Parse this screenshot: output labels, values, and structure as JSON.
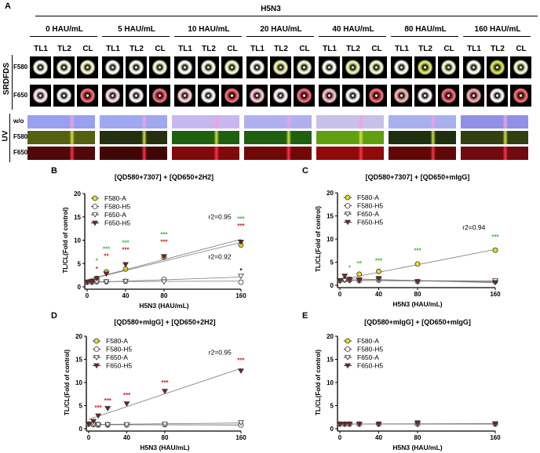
{
  "panelA": {
    "label": "A",
    "virus": "H5N3",
    "concentrations": [
      "0 HAU/mL",
      "5 HAU/mL",
      "10 HAU/mL",
      "20 HAU/mL",
      "40 HAU/mL",
      "80 HAU/mL",
      "160 HAU/mL"
    ],
    "lanes": [
      "TL1",
      "TL2",
      "CL"
    ],
    "srdfds_label": "SRDFDS",
    "uv_label": "UV",
    "srdfds_rows": [
      "F580",
      "F650"
    ],
    "uv_rows": [
      "w/o",
      "F580",
      "F650"
    ]
  },
  "chart_data": [
    {
      "panel": "B",
      "type": "line",
      "title": "[QD580+7307] + [QD650+2H2]",
      "xlabel": "H5N3 (HAU/mL)",
      "ylabel": "TL/CL(Fold of control)",
      "xlim": [
        0,
        160
      ],
      "ylim": [
        0,
        20
      ],
      "xticks": [
        "0",
        "40",
        "80",
        "160"
      ],
      "yticks": [
        "0",
        "5",
        "10",
        "15",
        "20"
      ],
      "legend": "top-left",
      "x": [
        0,
        5,
        10,
        20,
        40,
        80,
        160
      ],
      "series": [
        {
          "name": "F580-A",
          "values": [
            1,
            1.2,
            1.8,
            3.2,
            3.8,
            6.3,
            9.0
          ],
          "color": "#e8e020",
          "marker": "circle-filled"
        },
        {
          "name": "F580-H5",
          "values": [
            1,
            1.0,
            1.1,
            1.1,
            1.2,
            1.6,
            1.0
          ],
          "color": "#ffffff",
          "marker": "circle-open"
        },
        {
          "name": "F650-A",
          "values": [
            1,
            1.0,
            1.1,
            1.1,
            1.2,
            1.1,
            2.3
          ],
          "color": "#ffffff",
          "marker": "triangle-open"
        },
        {
          "name": "F650-H5",
          "values": [
            1,
            1.2,
            1.8,
            2.8,
            4.8,
            6.5,
            9.6
          ],
          "color": "#8b1a1a",
          "marker": "triangle-filled"
        }
      ],
      "annotations": [
        {
          "text": "r2=0.95",
          "x": 138,
          "y": 14.5
        },
        {
          "text": "r2=0.92",
          "x": 138,
          "y": 6
        }
      ],
      "significance": [
        {
          "x": 10,
          "y": 3.4,
          "text": "*",
          "color": "#d42020"
        },
        {
          "x": 10,
          "y": 2.6,
          "text": "*",
          "color": "#30c040"
        },
        {
          "x": 20,
          "y": 6.1,
          "text": "**",
          "color": "#d42020"
        },
        {
          "x": 20,
          "y": 5.1,
          "text": "***",
          "color": "#30c040"
        },
        {
          "x": 40,
          "y": 7.5,
          "text": "***",
          "color": "#d42020"
        },
        {
          "x": 40,
          "y": 6.5,
          "text": "***",
          "color": "#30c040"
        },
        {
          "x": 80,
          "y": 9.2,
          "text": "***",
          "color": "#d42020"
        },
        {
          "x": 80,
          "y": 8.2,
          "text": "***",
          "color": "#30c040"
        },
        {
          "x": 160,
          "y": 12.6,
          "text": "***",
          "color": "#d42020"
        },
        {
          "x": 160,
          "y": 11.6,
          "text": "***",
          "color": "#30c040"
        },
        {
          "x": 160,
          "y": 3.0,
          "text": "*",
          "color": "#000000"
        }
      ]
    },
    {
      "panel": "C",
      "type": "line",
      "title": "[QD580+7307] + [QD650+mIgG]",
      "xlabel": "H5N3 (HAU/mL)",
      "ylabel": "TL/CL(Fold of control)",
      "xlim": [
        0,
        160
      ],
      "ylim": [
        0,
        20
      ],
      "xticks": [
        "0",
        "40",
        "80",
        "160"
      ],
      "yticks": [
        "0",
        "5",
        "10",
        "15",
        "20"
      ],
      "legend": "top-left",
      "x": [
        0,
        5,
        10,
        20,
        40,
        80,
        160
      ],
      "series": [
        {
          "name": "F580-A",
          "values": [
            1,
            1.2,
            1.3,
            2.4,
            3.0,
            4.6,
            7.6
          ],
          "color": "#e8e020",
          "marker": "circle-filled"
        },
        {
          "name": "F580-H5",
          "values": [
            1,
            1.2,
            1.1,
            1.0,
            1.1,
            0.8,
            0.8
          ],
          "color": "#ffffff",
          "marker": "circle-open"
        },
        {
          "name": "F650-A",
          "values": [
            1,
            1.1,
            1.0,
            1.0,
            1.2,
            0.8,
            1.0
          ],
          "color": "#ffffff",
          "marker": "triangle-open"
        },
        {
          "name": "F650-H5",
          "values": [
            1,
            2.0,
            1.3,
            1.2,
            1.5,
            0.8,
            0.6
          ],
          "color": "#8b1a1a",
          "marker": "triangle-filled"
        }
      ],
      "annotations": [
        {
          "text": "r2=0.94",
          "x": 138,
          "y": 12
        }
      ],
      "significance": [
        {
          "x": 10,
          "y": 3.3,
          "text": "*",
          "color": "#30c040"
        },
        {
          "x": 20,
          "y": 4.2,
          "text": "**",
          "color": "#30c040"
        },
        {
          "x": 40,
          "y": 4.8,
          "text": "***",
          "color": "#30c040"
        },
        {
          "x": 80,
          "y": 7,
          "text": "***",
          "color": "#30c040"
        },
        {
          "x": 160,
          "y": 10,
          "text": "***",
          "color": "#30c040"
        }
      ]
    },
    {
      "panel": "D",
      "type": "line",
      "title": "[QD580+mIgG] + [QD650+2H2]",
      "xlabel": "H5N3 (HAU/mL)",
      "ylabel": "TL/CL(Fold of control)",
      "xlim": [
        0,
        160
      ],
      "ylim": [
        0,
        20
      ],
      "xticks": [
        "0",
        "40",
        "80",
        "160"
      ],
      "yticks": [
        "0",
        "5",
        "10",
        "15",
        "20"
      ],
      "legend": "top-left",
      "x": [
        0,
        5,
        10,
        20,
        40,
        80,
        160
      ],
      "series": [
        {
          "name": "F580-A",
          "values": [
            1,
            0.9,
            0.8,
            0.8,
            0.8,
            0.9,
            0.8
          ],
          "color": "#e8e020",
          "marker": "circle-filled"
        },
        {
          "name": "F580-H5",
          "values": [
            1,
            0.9,
            0.9,
            0.9,
            0.8,
            0.9,
            0.8
          ],
          "color": "#ffffff",
          "marker": "circle-open"
        },
        {
          "name": "F650-A",
          "values": [
            1,
            1.0,
            0.9,
            0.9,
            0.9,
            1.0,
            1.3
          ],
          "color": "#ffffff",
          "marker": "triangle-open"
        },
        {
          "name": "F650-H5",
          "values": [
            1,
            1.6,
            2.8,
            4.4,
            5.4,
            8.1,
            12.5
          ],
          "color": "#8b1a1a",
          "marker": "triangle-filled"
        }
      ],
      "annotations": [
        {
          "text": "r2=0.95",
          "x": 138,
          "y": 16
        }
      ],
      "significance": [
        {
          "x": 10,
          "y": 4.1,
          "text": "***",
          "color": "#d42020"
        },
        {
          "x": 20,
          "y": 5.6,
          "text": "***",
          "color": "#d42020"
        },
        {
          "x": 40,
          "y": 6.8,
          "text": "***",
          "color": "#d42020"
        },
        {
          "x": 80,
          "y": 9.5,
          "text": "***",
          "color": "#d42020"
        },
        {
          "x": 160,
          "y": 14.3,
          "text": "***",
          "color": "#d42020"
        }
      ]
    },
    {
      "panel": "E",
      "type": "line",
      "title": "[QD580+mIgG] + [QD650+mIgG]",
      "xlabel": "H5N3 (HAU/mL)",
      "ylabel": "TL/CL(Fold of control)",
      "xlim": [
        0,
        160
      ],
      "ylim": [
        0,
        20
      ],
      "xticks": [
        "0",
        "40",
        "80",
        "160"
      ],
      "yticks": [
        "0",
        "5",
        "10",
        "15",
        "20"
      ],
      "legend": "top-left",
      "x": [
        0,
        5,
        10,
        20,
        40,
        80,
        160
      ],
      "series": [
        {
          "name": "F580-A",
          "values": [
            1,
            1.0,
            1.0,
            1.0,
            1.0,
            1.0,
            1.0
          ],
          "color": "#e8e020",
          "marker": "circle-filled"
        },
        {
          "name": "F580-H5",
          "values": [
            1,
            1.0,
            1.0,
            1.0,
            1.0,
            1.0,
            1.0
          ],
          "color": "#ffffff",
          "marker": "circle-open"
        },
        {
          "name": "F650-A",
          "values": [
            1,
            1.0,
            1.0,
            1.0,
            1.0,
            1.0,
            1.1
          ],
          "color": "#ffffff",
          "marker": "triangle-open"
        },
        {
          "name": "F650-H5",
          "values": [
            1,
            1.0,
            1.0,
            1.0,
            1.0,
            1.3,
            1.0
          ],
          "color": "#8b1a1a",
          "marker": "triangle-filled"
        }
      ],
      "annotations": [],
      "significance": []
    }
  ]
}
